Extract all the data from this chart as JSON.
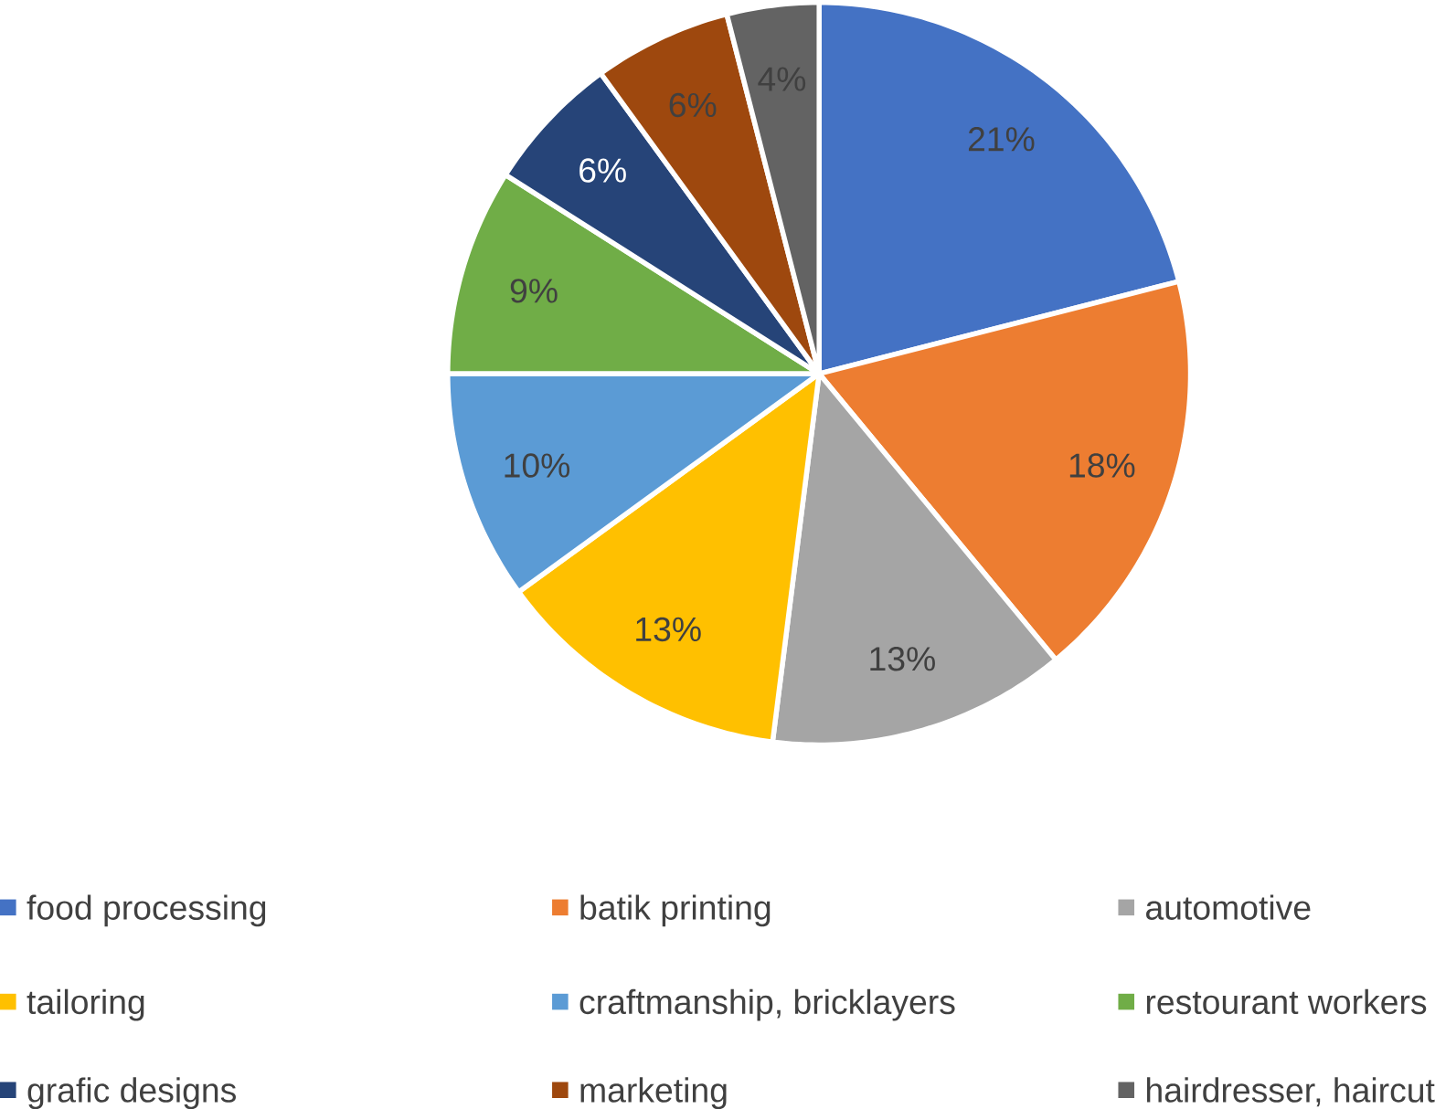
{
  "chart_data": {
    "type": "pie",
    "categories": [
      "food processing",
      "batik printing",
      "automotive",
      "tailoring",
      "craftmanship, bricklayers",
      "restourant workers",
      "grafic designs",
      "marketing",
      "hairdresser, haircut"
    ],
    "values": [
      21,
      18,
      13,
      13,
      10,
      9,
      6,
      6,
      4
    ],
    "value_labels": [
      "21%",
      "18%",
      "13%",
      "13%",
      "10%",
      "9%",
      "6%",
      "6%",
      "4%"
    ],
    "colors": [
      "#4472c4",
      "#ed7d31",
      "#a5a5a5",
      "#ffc000",
      "#5b9bd5",
      "#70ad47",
      "#264478",
      "#9e480e",
      "#636363"
    ],
    "legend": "bottom"
  }
}
